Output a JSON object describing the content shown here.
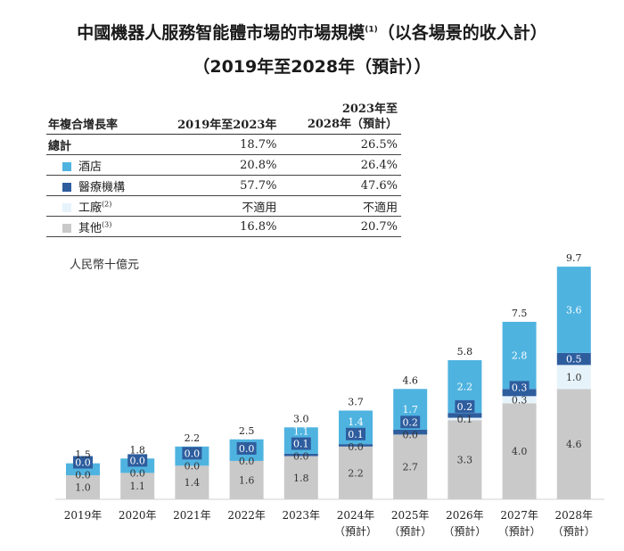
{
  "title": {
    "line1": "中國機器人服務智能體市場的市場規模",
    "line1_note": "(1)",
    "line1_suffix": "（以各場景的收入計）",
    "line2": "（2019年至2028年（預計））"
  },
  "table": {
    "header_label": "年複合增長率",
    "col1_header": "2019年至2023年",
    "col2_header_line1": "2023年至",
    "col2_header_line2": "2028年（預計）",
    "rows": [
      {
        "label": "總計",
        "note": "",
        "color": "",
        "cagr_2019_2023": "18.7%",
        "cagr_2023_2028": "26.5%"
      },
      {
        "label": "酒店",
        "note": "",
        "color": "#4fb3e0",
        "cagr_2019_2023": "20.8%",
        "cagr_2023_2028": "26.4%"
      },
      {
        "label": "醫療機構",
        "note": "",
        "color": "#2e5d9e",
        "cagr_2019_2023": "57.7%",
        "cagr_2023_2028": "47.6%"
      },
      {
        "label": "工廠",
        "note": "(2)",
        "color": "#e6f3fb",
        "cagr_2019_2023": "不適用",
        "cagr_2023_2028": "不適用"
      },
      {
        "label": "其他",
        "note": "(3)",
        "color": "#c9c9c9",
        "cagr_2019_2023": "16.8%",
        "cagr_2023_2028": "20.7%"
      }
    ]
  },
  "unit_label": "人民幣十億元",
  "chart_data": {
    "type": "bar",
    "stacked": true,
    "categories": [
      "2019年",
      "2020年",
      "2021年",
      "2022年",
      "2023年",
      "2024年",
      "2025年",
      "2026年",
      "2027年",
      "2028年"
    ],
    "category_sublabels": [
      "",
      "",
      "",
      "",
      "",
      "（預計）",
      "（預計）",
      "（預計）",
      "（預計）",
      "（預計）"
    ],
    "totals": [
      1.5,
      1.8,
      2.2,
      2.5,
      3.0,
      3.7,
      4.6,
      5.8,
      7.5,
      9.7
    ],
    "series": [
      {
        "name": "其他",
        "color": "#c9c9c9",
        "values": [
          1.0,
          1.1,
          1.4,
          1.6,
          1.8,
          2.2,
          2.7,
          3.3,
          4.0,
          4.6
        ]
      },
      {
        "name": "工廠",
        "color": "#e6f3fb",
        "values": [
          0.0,
          0.0,
          0.0,
          0.0,
          0.0,
          0.0,
          0.0,
          0.1,
          0.3,
          1.0
        ]
      },
      {
        "name": "醫療機構",
        "color": "#2e5d9e",
        "values": [
          0.0,
          0.0,
          0.0,
          0.0,
          0.1,
          0.1,
          0.2,
          0.2,
          0.3,
          0.5
        ]
      },
      {
        "name": "酒店",
        "color": "#4fb3e0",
        "values": [
          0.5,
          0.6,
          0.8,
          0.9,
          1.1,
          1.4,
          1.7,
          2.2,
          2.8,
          3.6
        ]
      }
    ],
    "ylabel": "人民幣十億元",
    "grid": false
  }
}
